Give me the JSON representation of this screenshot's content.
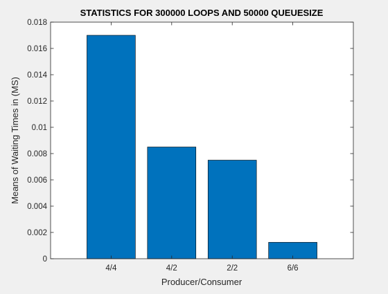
{
  "chart_data": {
    "type": "bar",
    "title": "STATISTICS FOR 300000 LOOPS AND 50000 QUEUESIZE",
    "xlabel": "Producer/Consumer",
    "ylabel": "Means of Waiting Times in (MS)",
    "categories": [
      "4/4",
      "4/2",
      "2/2",
      "6/6"
    ],
    "values": [
      0.017,
      0.0085,
      0.0075,
      0.00125
    ],
    "ylim": [
      0,
      0.018
    ],
    "yticks": [
      "0",
      "0.002",
      "0.004",
      "0.006",
      "0.008",
      "0.01",
      "0.012",
      "0.014",
      "0.016",
      "0.018"
    ],
    "grid": false,
    "colors": {
      "bar": "#0072bd",
      "bar_edge": "#000000",
      "axes_bg": "#ffffff",
      "figure_bg": "#f0f0f0"
    }
  }
}
